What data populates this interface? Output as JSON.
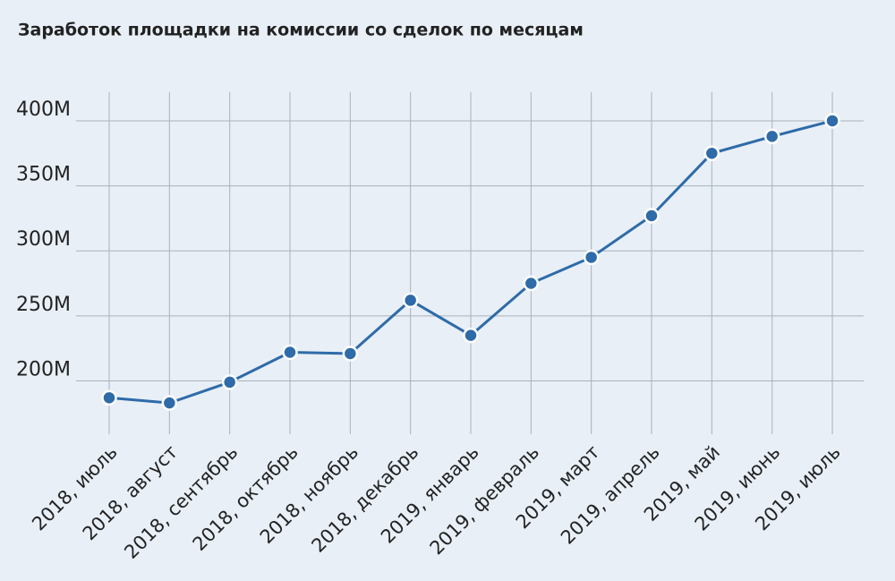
{
  "chart_data": {
    "type": "line",
    "title": "Заработок площадки на комиссии со сделок по месяцам",
    "categories": [
      "2018, июль",
      "2018, август",
      "2018, сентябрь",
      "2018, октябрь",
      "2018, ноябрь",
      "2018, декабрь",
      "2019, январь",
      "2019, февраль",
      "2019, март",
      "2019, апрель",
      "2019, май",
      "2019, июнь",
      "2019, июль"
    ],
    "series": [
      {
        "color": "#2e6ba8",
        "values": [
          187,
          183,
          199,
          222,
          221,
          262,
          235,
          275,
          295,
          327,
          375,
          388,
          400
        ]
      }
    ],
    "ylim": [
      159,
      422
    ],
    "yticks": [
      {
        "value": 200,
        "label": "200M"
      },
      {
        "value": 250,
        "label": "250M"
      },
      {
        "value": 300,
        "label": "300M"
      },
      {
        "value": 350,
        "label": "350M"
      },
      {
        "value": 400,
        "label": "400M"
      }
    ],
    "grid": true
  }
}
